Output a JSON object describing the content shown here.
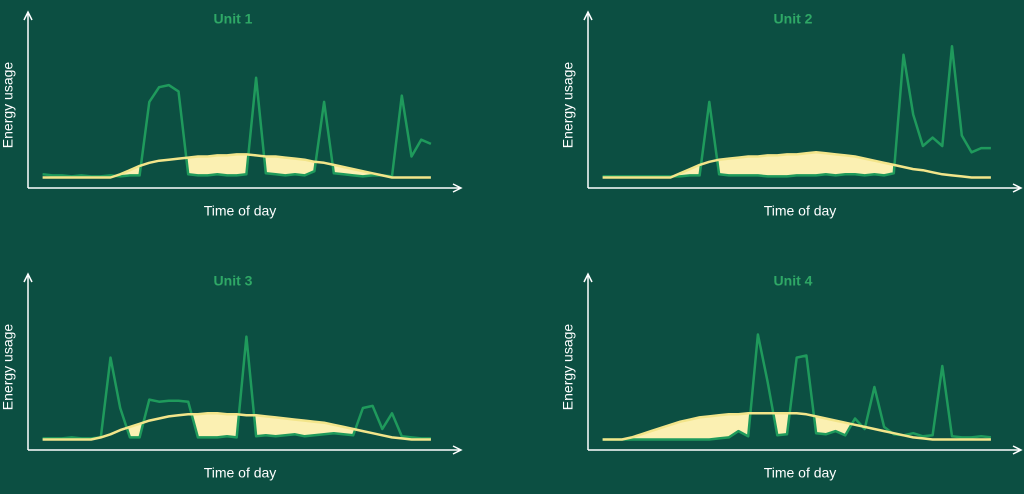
{
  "chart_data": [
    {
      "type": "line",
      "title": "Unit 1",
      "x_label": "Time of day",
      "y_label": "Energy usage",
      "x": [
        0,
        1,
        2,
        3,
        4,
        5,
        6,
        7,
        8,
        9,
        10,
        11,
        12,
        13,
        14,
        15,
        16,
        17,
        18,
        19,
        20,
        21,
        22,
        23,
        24,
        25,
        26,
        27,
        28,
        29,
        30,
        31,
        32,
        33,
        34,
        35,
        36,
        37,
        38,
        39,
        40
      ],
      "xlim": [
        -1.5,
        43
      ],
      "ylim": [
        -10,
        150
      ],
      "series": [
        {
          "color": "#1f9a5c",
          "values": [
            3,
            2,
            2,
            1,
            2,
            1,
            1,
            2,
            1,
            2,
            2,
            72,
            86,
            88,
            82,
            3,
            2,
            2,
            3,
            2,
            2,
            3,
            95,
            4,
            3,
            2,
            3,
            2,
            6,
            72,
            4,
            3,
            2,
            1,
            2,
            2,
            1,
            78,
            20,
            36,
            32
          ]
        },
        {
          "color": "#f3e58a",
          "values": [
            0,
            0,
            0,
            0,
            0,
            0,
            0,
            0,
            3,
            7,
            11,
            14,
            16,
            17,
            18,
            19,
            20,
            20,
            21,
            21,
            22,
            22,
            21,
            20,
            20,
            19,
            18,
            17,
            15,
            14,
            12,
            10,
            8,
            6,
            4,
            2,
            0,
            0,
            0,
            0,
            0
          ]
        }
      ]
    },
    {
      "type": "line",
      "title": "Unit 2",
      "x_label": "Time of day",
      "y_label": "Energy usage",
      "x": [
        0,
        1,
        2,
        3,
        4,
        5,
        6,
        7,
        8,
        9,
        10,
        11,
        12,
        13,
        14,
        15,
        16,
        17,
        18,
        19,
        20,
        21,
        22,
        23,
        24,
        25,
        26,
        27,
        28,
        29,
        30,
        31,
        32,
        33,
        34,
        35,
        36,
        37,
        38,
        39,
        40
      ],
      "xlim": [
        -1.5,
        43
      ],
      "ylim": [
        -10,
        150
      ],
      "series": [
        {
          "color": "#1f9a5c",
          "values": [
            1,
            1,
            1,
            1,
            1,
            1,
            1,
            1,
            1,
            2,
            2,
            72,
            3,
            2,
            2,
            2,
            2,
            1,
            1,
            1,
            2,
            2,
            2,
            3,
            2,
            3,
            3,
            2,
            3,
            2,
            4,
            117,
            60,
            30,
            38,
            30,
            125,
            40,
            24,
            28,
            28
          ]
        },
        {
          "color": "#f3e58a",
          "values": [
            0,
            0,
            0,
            0,
            0,
            0,
            0,
            0,
            4,
            8,
            12,
            15,
            17,
            18,
            19,
            20,
            20,
            21,
            21,
            22,
            22,
            23,
            24,
            23,
            22,
            21,
            20,
            18,
            16,
            14,
            12,
            10,
            8,
            7,
            5,
            3,
            2,
            1,
            0,
            0,
            0
          ]
        }
      ]
    },
    {
      "type": "line",
      "title": "Unit 3",
      "x_label": "Time of day",
      "y_label": "Energy usage",
      "x": [
        0,
        1,
        2,
        3,
        4,
        5,
        6,
        7,
        8,
        9,
        10,
        11,
        12,
        13,
        14,
        15,
        16,
        17,
        18,
        19,
        20,
        21,
        22,
        23,
        24,
        25,
        26,
        27,
        28,
        29,
        30,
        31,
        32,
        33,
        34,
        35,
        36,
        37,
        38,
        39,
        40
      ],
      "xlim": [
        -1.5,
        43
      ],
      "ylim": [
        -10,
        150
      ],
      "series": [
        {
          "color": "#1f9a5c",
          "values": [
            1,
            1,
            1,
            2,
            1,
            1,
            2,
            78,
            30,
            2,
            2,
            38,
            36,
            37,
            37,
            36,
            2,
            2,
            2,
            3,
            2,
            98,
            3,
            4,
            3,
            4,
            5,
            3,
            4,
            5,
            6,
            5,
            4,
            30,
            32,
            10,
            25,
            3,
            2,
            1,
            1
          ]
        },
        {
          "color": "#f3e58a",
          "values": [
            0,
            0,
            0,
            0,
            0,
            0,
            2,
            5,
            9,
            12,
            15,
            18,
            20,
            22,
            23,
            24,
            24,
            25,
            25,
            24,
            24,
            23,
            23,
            22,
            21,
            20,
            19,
            18,
            17,
            16,
            14,
            12,
            10,
            8,
            6,
            4,
            2,
            1,
            0,
            0,
            0
          ]
        }
      ]
    },
    {
      "type": "line",
      "title": "Unit 4",
      "x_label": "Time of day",
      "y_label": "Energy usage",
      "x": [
        0,
        1,
        2,
        3,
        4,
        5,
        6,
        7,
        8,
        9,
        10,
        11,
        12,
        13,
        14,
        15,
        16,
        17,
        18,
        19,
        20,
        21,
        22,
        23,
        24,
        25,
        26,
        27,
        28,
        29,
        30,
        31,
        32,
        33,
        34,
        35,
        36,
        37,
        38,
        39,
        40
      ],
      "xlim": [
        -1.5,
        43
      ],
      "ylim": [
        -10,
        150
      ],
      "series": [
        {
          "color": "#1f9a5c",
          "values": [
            0,
            0,
            0,
            0,
            0,
            0,
            0,
            0,
            0,
            0,
            0,
            0,
            1,
            2,
            8,
            3,
            100,
            55,
            4,
            5,
            78,
            80,
            6,
            5,
            8,
            4,
            20,
            10,
            50,
            12,
            5,
            4,
            6,
            3,
            4,
            70,
            3,
            2,
            2,
            3,
            2
          ]
        },
        {
          "color": "#f3e58a",
          "values": [
            0,
            0,
            0,
            2,
            5,
            8,
            11,
            14,
            17,
            19,
            21,
            22,
            23,
            24,
            24,
            25,
            25,
            25,
            25,
            25,
            25,
            24,
            22,
            20,
            18,
            16,
            14,
            12,
            10,
            8,
            6,
            4,
            2,
            1,
            0,
            0,
            0,
            0,
            0,
            0,
            0
          ]
        }
      ]
    }
  ]
}
